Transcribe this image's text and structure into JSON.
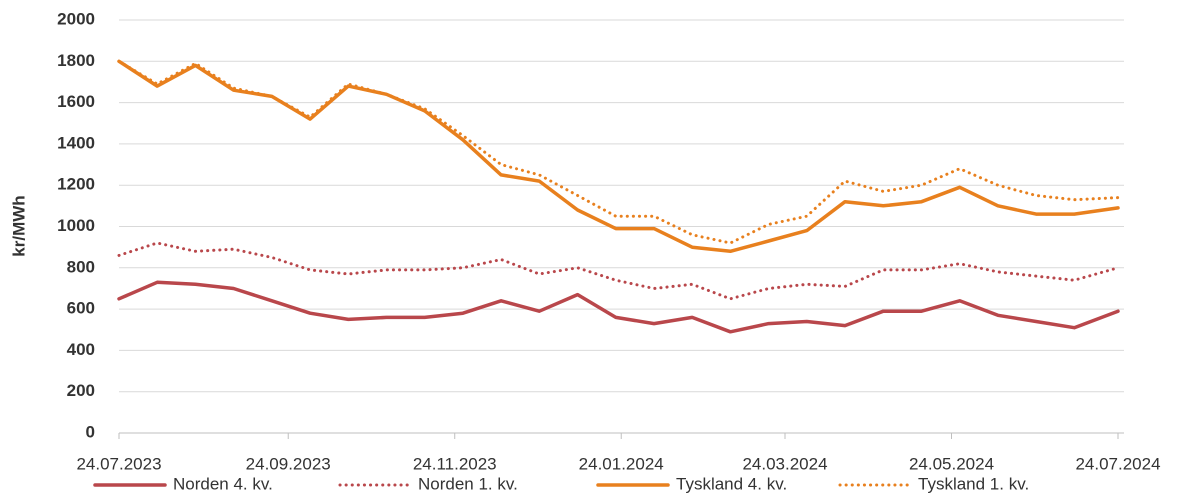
{
  "chart_data": {
    "type": "line",
    "y_label": "kr/MWh",
    "x": [
      "24.07.2023",
      "07.08.2023",
      "21.08.2023",
      "04.09.2023",
      "18.09.2023",
      "02.10.2023",
      "16.10.2023",
      "30.10.2023",
      "13.11.2023",
      "27.11.2023",
      "11.12.2023",
      "25.12.2023",
      "08.01.2024",
      "22.01.2024",
      "05.02.2024",
      "19.02.2024",
      "04.03.2024",
      "18.03.2024",
      "01.04.2024",
      "15.04.2024",
      "29.04.2024",
      "13.05.2024",
      "27.05.2024",
      "10.06.2024",
      "24.06.2024",
      "08.07.2024",
      "24.07.2024"
    ],
    "series": [
      {
        "name": "Norden 4. kv.",
        "color": "#b9474b",
        "dash": "solid",
        "values": [
          650,
          730,
          720,
          700,
          640,
          580,
          550,
          560,
          560,
          580,
          640,
          590,
          670,
          560,
          530,
          560,
          490,
          530,
          540,
          520,
          590,
          590,
          640,
          570,
          540,
          510,
          590
        ]
      },
      {
        "name": "Norden 1. kv.",
        "color": "#b9474b",
        "dash": "dotted",
        "values": [
          860,
          920,
          880,
          890,
          850,
          790,
          770,
          790,
          790,
          800,
          840,
          770,
          800,
          740,
          700,
          720,
          650,
          700,
          720,
          710,
          790,
          790,
          820,
          780,
          760,
          740,
          800
        ]
      },
      {
        "name": "Tyskland 4. kv.",
        "color": "#e8801e",
        "dash": "solid",
        "values": [
          1800,
          1680,
          1780,
          1660,
          1630,
          1520,
          1680,
          1640,
          1560,
          1420,
          1250,
          1220,
          1080,
          990,
          990,
          900,
          880,
          930,
          980,
          1120,
          1100,
          1120,
          1190,
          1100,
          1060,
          1060,
          1090
        ]
      },
      {
        "name": "Tyskland 1. kv.",
        "color": "#e8801e",
        "dash": "dotted",
        "values": [
          1800,
          1690,
          1790,
          1670,
          1630,
          1530,
          1690,
          1640,
          1570,
          1440,
          1300,
          1250,
          1150,
          1050,
          1050,
          960,
          920,
          1010,
          1050,
          1220,
          1170,
          1200,
          1280,
          1200,
          1150,
          1130,
          1140
        ]
      }
    ],
    "xlim": [
      "24.07.2023",
      "24.07.2024"
    ],
    "xticks": [
      "24.07.2023",
      "24.09.2023",
      "24.11.2023",
      "24.01.2024",
      "24.03.2024",
      "24.05.2024",
      "24.07.2024"
    ],
    "ylim": [
      0,
      2000
    ],
    "yticks": [
      0,
      200,
      400,
      600,
      800,
      1000,
      1200,
      1400,
      1600,
      1800,
      2000
    ],
    "grid": true,
    "legend": "bottom"
  }
}
